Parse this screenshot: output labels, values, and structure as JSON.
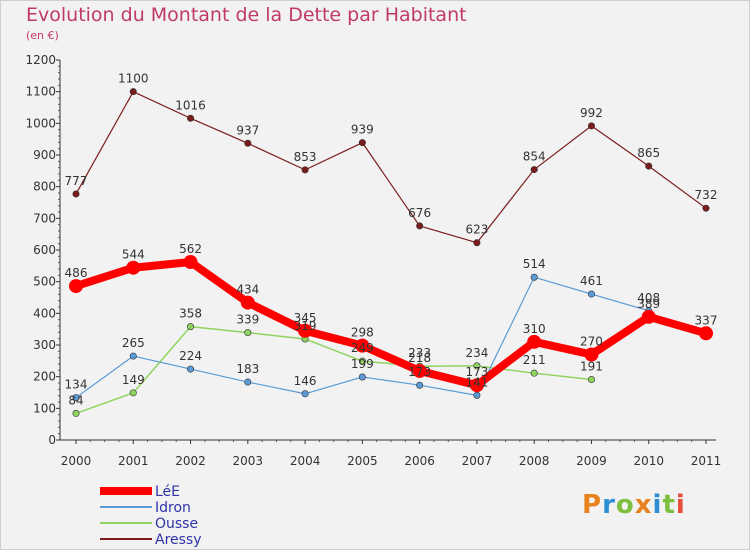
{
  "chart_data": {
    "type": "line",
    "title": "Evolution du Montant de la Dette par Habitant",
    "subtitle": "(en €)",
    "xlabel": "",
    "ylabel": "",
    "categories": [
      "2000",
      "2001",
      "2002",
      "2003",
      "2004",
      "2005",
      "2006",
      "2007",
      "2008",
      "2009",
      "2010",
      "2011"
    ],
    "ylim": [
      0,
      1200
    ],
    "yticks": [
      0,
      100,
      200,
      300,
      400,
      500,
      600,
      700,
      800,
      900,
      1000,
      1100,
      1200
    ],
    "grid": false,
    "legend_position": "bottom-left",
    "series": [
      {
        "name": "Aressy",
        "color": "#7a1c1c",
        "width": 1.2,
        "values": [
          777,
          1100,
          1016,
          937,
          853,
          939,
          676,
          623,
          854,
          992,
          865,
          732
        ]
      },
      {
        "name": "Ousse",
        "color": "#8fd460",
        "width": 1.5,
        "values": [
          84,
          149,
          358,
          339,
          319,
          249,
          233,
          234,
          211,
          191,
          null,
          null
        ]
      },
      {
        "name": "Idron",
        "color": "#5b9bd5",
        "width": 1.2,
        "values": [
          134,
          265,
          224,
          183,
          146,
          199,
          173,
          141,
          514,
          461,
          408,
          null
        ]
      },
      {
        "name": "LéE",
        "color": "#ff0000",
        "width": 8,
        "values": [
          486,
          544,
          562,
          434,
          345,
          298,
          218,
          173,
          310,
          270,
          389,
          337
        ]
      }
    ],
    "legend_order": [
      "LéE",
      "Idron",
      "Ousse",
      "Aressy"
    ]
  },
  "logo": {
    "letters": [
      "P",
      "r",
      "o",
      "x",
      "i",
      "t",
      "i"
    ]
  }
}
